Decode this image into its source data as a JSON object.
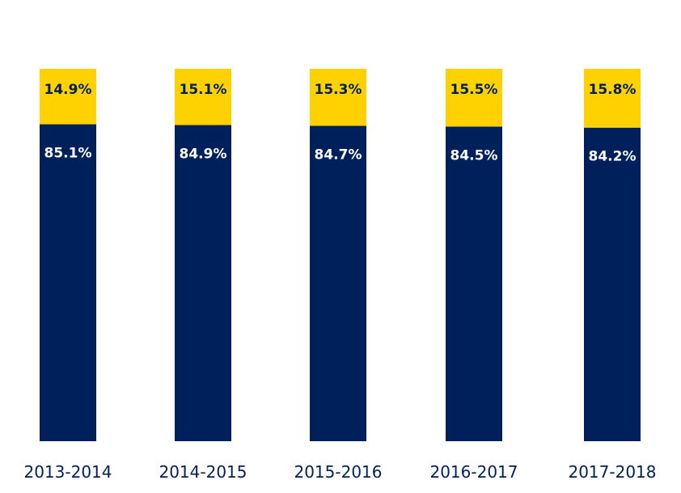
{
  "chart_data": {
    "type": "bar",
    "stacked": true,
    "normalized_to": 100,
    "value_suffix": "%",
    "categories": [
      "2013-2014",
      "2014-2015",
      "2015-2016",
      "2016-2017",
      "2017-2018"
    ],
    "series": [
      {
        "values": [
          85.1,
          84.9,
          84.7,
          84.5,
          84.2
        ],
        "color": "#00205b",
        "label_color": "#ffffff"
      },
      {
        "values": [
          14.9,
          15.1,
          15.3,
          15.5,
          15.8
        ],
        "color": "#ffd100",
        "label_color": "#00205b"
      }
    ],
    "grid": false,
    "legend": "none",
    "category_label_color": "#00205b"
  }
}
